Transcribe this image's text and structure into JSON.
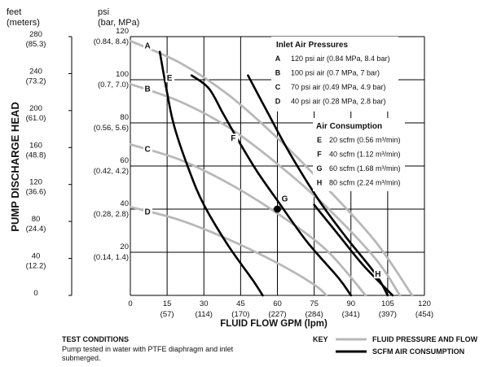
{
  "chart_data": {
    "type": "line",
    "left_axis": {
      "unit_line1": "feet",
      "unit_line2": "(meters)",
      "title": "PUMP DISCHARGE HEAD",
      "ticks": [
        {
          "feet": "280",
          "meters": "(85.3)"
        },
        {
          "feet": "240",
          "meters": "(73.2)"
        },
        {
          "feet": "200",
          "meters": "(61.0)"
        },
        {
          "feet": "160",
          "meters": "(48.8)"
        },
        {
          "feet": "120",
          "meters": "(36.6)"
        },
        {
          "feet": "80",
          "meters": "(24.4)"
        },
        {
          "feet": "40",
          "meters": "(12.2)"
        },
        {
          "feet": "0",
          "meters": ""
        }
      ]
    },
    "y_axis": {
      "unit_line1": "psi",
      "unit_line2": "(bar, MPa)",
      "ylim": [
        0,
        120
      ],
      "ticks": [
        {
          "psi": "120",
          "sub": "(0.84, 8.4)"
        },
        {
          "psi": "100",
          "sub": "(0.7, 7.0)"
        },
        {
          "psi": "80",
          "sub": "(0.56, 5.6)"
        },
        {
          "psi": "60",
          "sub": "(0.42, 4.2)"
        },
        {
          "psi": "40",
          "sub": "(0.28, 2.8)"
        },
        {
          "psi": "20",
          "sub": "(0.14, 1.4)"
        }
      ]
    },
    "x_axis": {
      "title": "FLUID FLOW GPM (lpm)",
      "xlim": [
        0,
        120
      ],
      "ticks": [
        {
          "gpm": "0",
          "lpm": ""
        },
        {
          "gpm": "15",
          "lpm": "(57)"
        },
        {
          "gpm": "30",
          "lpm": "(114)"
        },
        {
          "gpm": "45",
          "lpm": "(170)"
        },
        {
          "gpm": "60",
          "lpm": "(227)"
        },
        {
          "gpm": "75",
          "lpm": "(284)"
        },
        {
          "gpm": "90",
          "lpm": "(341)"
        },
        {
          "gpm": "105",
          "lpm": "(397)"
        },
        {
          "gpm": "120",
          "lpm": "(454)"
        }
      ]
    },
    "pressure_curves": [
      {
        "name": "A",
        "points": [
          [
            0,
            118
          ],
          [
            20,
            108
          ],
          [
            40,
            93
          ],
          [
            60,
            73
          ],
          [
            80,
            50
          ],
          [
            100,
            25
          ],
          [
            115,
            0
          ]
        ]
      },
      {
        "name": "B",
        "points": [
          [
            0,
            98
          ],
          [
            20,
            90
          ],
          [
            40,
            78
          ],
          [
            60,
            61
          ],
          [
            80,
            41
          ],
          [
            100,
            17
          ],
          [
            110,
            0
          ]
        ]
      },
      {
        "name": "C",
        "points": [
          [
            0,
            70
          ],
          [
            20,
            63
          ],
          [
            40,
            52
          ],
          [
            60,
            38
          ],
          [
            80,
            21
          ],
          [
            96,
            0
          ]
        ]
      },
      {
        "name": "D",
        "points": [
          [
            0,
            41
          ],
          [
            20,
            35
          ],
          [
            40,
            26
          ],
          [
            60,
            15
          ],
          [
            75,
            5
          ],
          [
            80,
            0
          ]
        ]
      }
    ],
    "consumption_curves": [
      {
        "name": "E",
        "points": [
          [
            12,
            113
          ],
          [
            15,
            94
          ],
          [
            18,
            78
          ],
          [
            24,
            58
          ],
          [
            30,
            42
          ],
          [
            40,
            23
          ],
          [
            50,
            7
          ],
          [
            54,
            0
          ]
        ]
      },
      {
        "name": "F",
        "points": [
          [
            25,
            102
          ],
          [
            32,
            96
          ],
          [
            38,
            84
          ],
          [
            45,
            70
          ],
          [
            52,
            57
          ],
          [
            60,
            44
          ],
          [
            72,
            25
          ],
          [
            85,
            8
          ],
          [
            90,
            0
          ]
        ]
      },
      {
        "name": "G",
        "points": [
          [
            48,
            102
          ],
          [
            55,
            87
          ],
          [
            65,
            66
          ],
          [
            77,
            44
          ],
          [
            88,
            27
          ],
          [
            100,
            10
          ],
          [
            105,
            0
          ]
        ]
      },
      {
        "name": "H",
        "points": [
          [
            75,
            42
          ],
          [
            85,
            28
          ],
          [
            95,
            14
          ],
          [
            107,
            0
          ]
        ]
      }
    ],
    "marker": {
      "label": "G",
      "x": 60,
      "y": 40
    },
    "curve_labels": [
      {
        "text": "A",
        "x": 7,
        "y": 115
      },
      {
        "text": "B",
        "x": 7,
        "y": 95
      },
      {
        "text": "C",
        "x": 7,
        "y": 67
      },
      {
        "text": "D",
        "x": 7,
        "y": 38
      },
      {
        "text": "E",
        "x": 16,
        "y": 100
      },
      {
        "text": "F",
        "x": 42,
        "y": 72
      },
      {
        "text": "G",
        "x": 63,
        "y": 44
      },
      {
        "text": "H",
        "x": 101,
        "y": 9
      }
    ],
    "legend_inlet": {
      "title": "Inlet Air Pressures",
      "items": [
        {
          "key": "A",
          "text": "120 psi air (0.84 MPa, 8.4 bar)"
        },
        {
          "key": "B",
          "text": "100 psi air (0.7 MPa, 7 bar)"
        },
        {
          "key": "C",
          "text": "70 psi air (0.49 MPa, 4.9 bar)"
        },
        {
          "key": "D",
          "text": "40 psi air (0.28 MPa, 2.8 bar)"
        }
      ]
    },
    "legend_air": {
      "title": "Air Consumption",
      "items": [
        {
          "key": "E",
          "text": "20 scfm (0.56 m³/min)"
        },
        {
          "key": "F",
          "text": "40 scfm (1.12 m³/min)"
        },
        {
          "key": "G",
          "text": "60 scfm (1.68 m³/min)"
        },
        {
          "key": "H",
          "text": "80 scfm (2.24 m³/min)"
        }
      ]
    },
    "grid": true
  },
  "test_conditions": {
    "title": "TEST CONDITIONS",
    "line1": "Pump tested in water with PTFE diaphragm and inlet",
    "line2": "submerged."
  },
  "key": {
    "title": "KEY",
    "items": [
      {
        "text": "FLUID PRESSURE AND FLOW",
        "color": "#b8b8b8"
      },
      {
        "text": "SCFM AIR CONSUMPTION",
        "color": "#000000"
      }
    ]
  },
  "colors": {
    "pressure_line": "#b8b8b8",
    "consumption_line": "#000000",
    "grid": "#000000"
  }
}
